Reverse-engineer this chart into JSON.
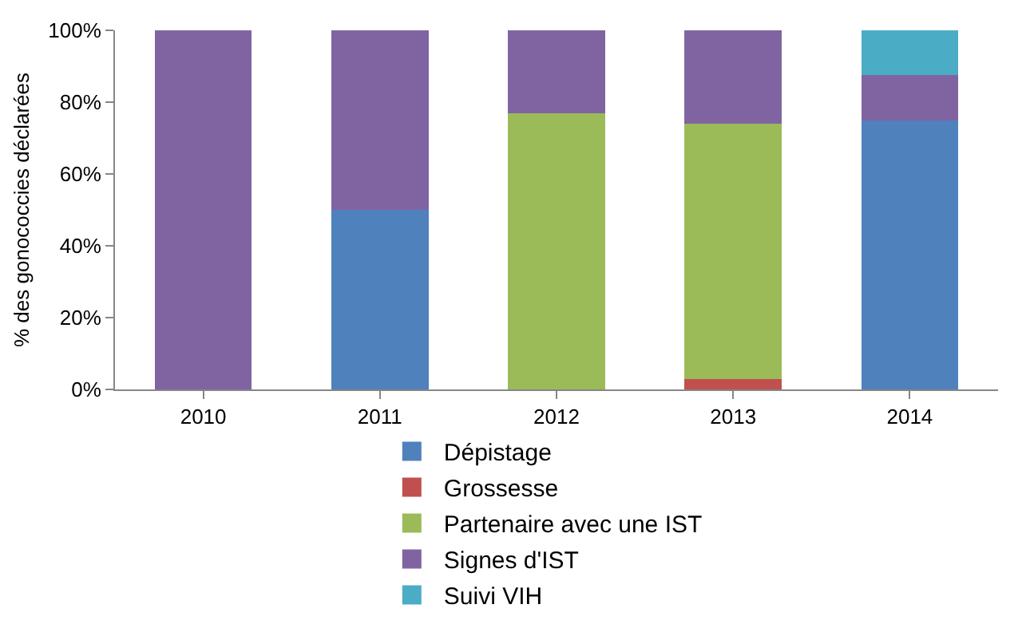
{
  "chart_data": {
    "type": "bar",
    "stacked": true,
    "ylabel": "% des gonococcies déclarées",
    "categories": [
      "2010",
      "2011",
      "2012",
      "2013",
      "2014"
    ],
    "series": [
      {
        "name": "Dépistage",
        "color": "#4f81bd",
        "values": [
          0,
          50,
          0,
          0,
          75
        ]
      },
      {
        "name": "Grossesse",
        "color": "#c0504d",
        "values": [
          0,
          0,
          0,
          3,
          0
        ]
      },
      {
        "name": "Partenaire avec une IST",
        "color": "#9bbb59",
        "values": [
          0,
          0,
          77,
          71,
          0
        ]
      },
      {
        "name": "Signes d'IST",
        "color": "#8064a2",
        "values": [
          100,
          50,
          23,
          26,
          12.5
        ]
      },
      {
        "name": "Suivi VIH",
        "color": "#4bacc6",
        "values": [
          0,
          0,
          0,
          0,
          12.5
        ]
      }
    ],
    "ylim": [
      0,
      100
    ],
    "yticks": [
      {
        "value": 0,
        "label": "0%"
      },
      {
        "value": 20,
        "label": "20%"
      },
      {
        "value": 40,
        "label": "40%"
      },
      {
        "value": 60,
        "label": "60%"
      },
      {
        "value": 80,
        "label": "80%"
      },
      {
        "value": 100,
        "label": "100%"
      }
    ],
    "grid": false,
    "legend": "bottom"
  }
}
